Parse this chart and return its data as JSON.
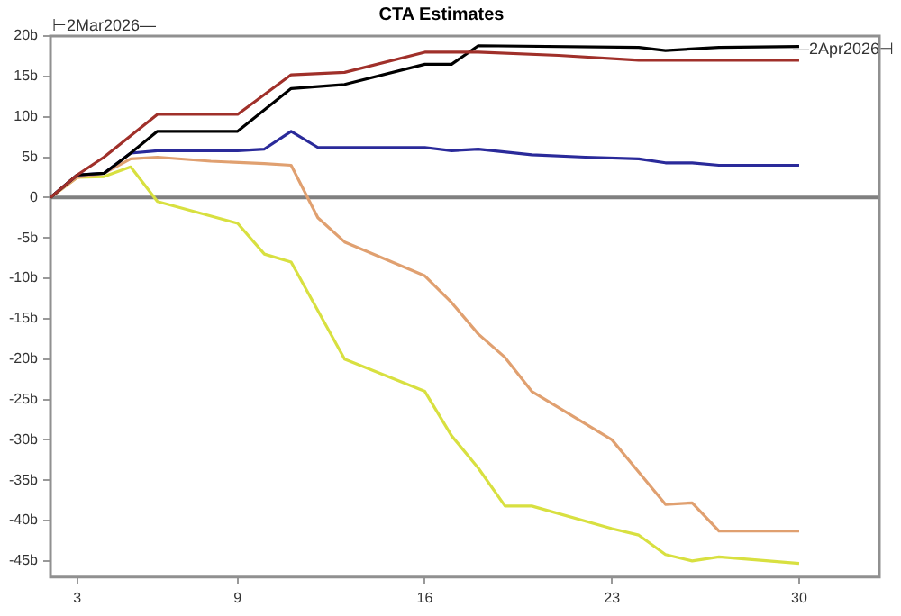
{
  "chart_data": {
    "type": "line",
    "title": "CTA Estimates",
    "annotations": [
      "⊢2Mar2026—",
      "—2Apr2026⊣"
    ],
    "xlim": [
      2,
      33
    ],
    "xticks": [
      3,
      9,
      16,
      23,
      30
    ],
    "ylim": [
      -47,
      20
    ],
    "yticks": [
      {
        "value": 20,
        "label": "20b"
      },
      {
        "value": 15,
        "label": "15b"
      },
      {
        "value": 10,
        "label": "10b"
      },
      {
        "value": 5,
        "label": "5b"
      },
      {
        "value": 0,
        "label": "0"
      },
      {
        "value": -5,
        "label": "-5b"
      },
      {
        "value": -10,
        "label": "-10b"
      },
      {
        "value": -15,
        "label": "-15b"
      },
      {
        "value": -20,
        "label": "-20b"
      },
      {
        "value": -25,
        "label": "-25b"
      },
      {
        "value": -30,
        "label": "-30b"
      },
      {
        "value": -35,
        "label": "-35b"
      },
      {
        "value": -40,
        "label": "-40b"
      },
      {
        "value": -45,
        "label": "-45b"
      }
    ],
    "grid": false,
    "legend": false,
    "marker": "none",
    "line_style": "solid",
    "ref_lines": [
      {
        "axis": "y",
        "value": 0,
        "color": "#808080"
      }
    ],
    "series": [
      {
        "color": "#a0302a",
        "x": [
          2,
          3,
          4,
          6,
          9,
          11,
          13,
          16,
          18,
          21,
          24,
          27,
          30
        ],
        "values": [
          0,
          2.8,
          5,
          10.3,
          10.3,
          15.2,
          15.5,
          18,
          18,
          17.6,
          17,
          17,
          17
        ]
      },
      {
        "color": "#000000",
        "x": [
          2,
          3,
          4,
          5,
          6,
          9,
          11,
          13,
          16,
          17,
          18,
          24,
          25,
          27,
          30
        ],
        "values": [
          0,
          2.8,
          3,
          5.5,
          8.2,
          8.2,
          13.5,
          14,
          16.5,
          16.5,
          18.8,
          18.6,
          18.2,
          18.6,
          18.7
        ]
      },
      {
        "color": "#2a2a9a",
        "x": [
          2,
          3,
          4,
          5,
          6,
          9,
          10,
          11,
          12,
          16,
          17,
          18,
          20,
          22,
          24,
          25,
          26,
          27,
          30
        ],
        "values": [
          0,
          2.8,
          3,
          5.5,
          5.8,
          5.8,
          6,
          8.2,
          6.2,
          6.2,
          5.8,
          6,
          5.3,
          5,
          4.8,
          4.3,
          4.3,
          4,
          4
        ]
      },
      {
        "color": "#e0a070",
        "x": [
          2,
          3,
          4,
          5,
          6,
          8,
          10,
          11,
          12,
          13,
          16,
          17,
          18,
          19,
          20,
          23,
          25,
          26,
          27,
          30
        ],
        "values": [
          0,
          2.5,
          3,
          4.8,
          5,
          4.5,
          4.2,
          4,
          -2.5,
          -5.5,
          -9.7,
          -13,
          -16.9,
          -19.8,
          -24,
          -30,
          -38,
          -37.8,
          -41.3,
          -41.3
        ]
      },
      {
        "color": "#d8e040",
        "x": [
          2,
          3,
          4,
          5,
          6,
          9,
          10,
          11,
          13,
          16,
          17,
          18,
          19,
          20,
          23,
          24,
          25,
          26,
          27,
          30
        ],
        "values": [
          0,
          2.5,
          2.6,
          3.8,
          -0.5,
          -3.2,
          -7,
          -8,
          -20,
          -24,
          -29.5,
          -33.5,
          -38.2,
          -38.2,
          -41,
          -41.8,
          -44.2,
          -45,
          -44.5,
          -45.3
        ]
      }
    ]
  }
}
